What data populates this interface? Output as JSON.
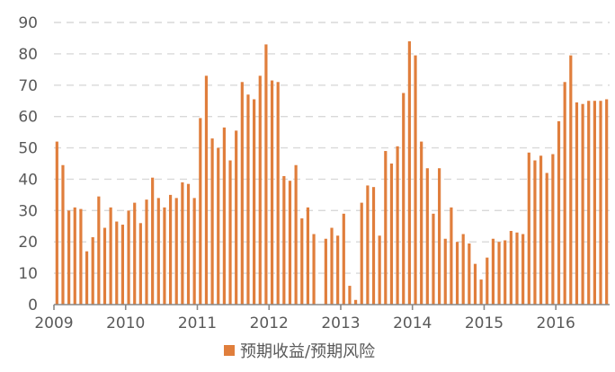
{
  "chart_data": {
    "type": "bar",
    "title": "",
    "xlabel": "",
    "ylabel": "",
    "ylim": [
      0,
      90
    ],
    "yticks": [
      0,
      10,
      20,
      30,
      40,
      50,
      60,
      70,
      80,
      90
    ],
    "xticks": [
      "2009",
      "2010",
      "2011",
      "2012",
      "2013",
      "2014",
      "2015",
      "2016"
    ],
    "grid": "horizontal dashed",
    "legend_position": "bottom-center",
    "series": [
      {
        "name": "预期收益/预期风险",
        "color": "#E07E3C",
        "x": [
          "2009-01",
          "2009-02",
          "2009-03",
          "2009-04",
          "2009-05",
          "2009-06",
          "2009-07",
          "2009-08",
          "2009-09",
          "2009-10",
          "2009-11",
          "2009-12",
          "2010-01",
          "2010-02",
          "2010-03",
          "2010-04",
          "2010-05",
          "2010-06",
          "2010-07",
          "2010-08",
          "2010-09",
          "2010-10",
          "2010-11",
          "2010-12",
          "2011-01",
          "2011-02",
          "2011-03",
          "2011-04",
          "2011-05",
          "2011-06",
          "2011-07",
          "2011-08",
          "2011-09",
          "2011-10",
          "2011-11",
          "2011-12",
          "2012-01",
          "2012-02",
          "2012-03",
          "2012-04",
          "2012-05",
          "2012-06",
          "2012-07",
          "2012-08",
          "2012-09",
          "2012-10",
          "2012-11",
          "2012-12",
          "2013-01",
          "2013-02",
          "2013-03",
          "2013-04",
          "2013-05",
          "2013-06",
          "2013-07",
          "2013-08",
          "2013-09",
          "2013-10",
          "2013-11",
          "2013-12",
          "2014-01",
          "2014-02",
          "2014-03",
          "2014-04",
          "2014-05",
          "2014-06",
          "2014-07",
          "2014-08",
          "2014-09",
          "2014-10",
          "2014-11",
          "2014-12",
          "2015-01",
          "2015-02",
          "2015-03",
          "2015-04",
          "2015-05",
          "2015-06",
          "2015-07",
          "2015-08",
          "2015-09",
          "2015-10",
          "2015-11",
          "2015-12",
          "2016-01",
          "2016-02",
          "2016-03",
          "2016-04",
          "2016-05",
          "2016-06",
          "2016-07",
          "2016-08",
          "2016-09"
        ],
        "values": [
          52,
          44.5,
          30,
          31,
          30.5,
          17,
          21.5,
          34.5,
          24.5,
          31,
          26.5,
          25.5,
          30,
          32.5,
          26,
          33.5,
          40.5,
          34,
          31,
          35,
          34,
          39,
          38.5,
          34,
          59.5,
          73,
          53,
          50,
          56.5,
          46,
          55.5,
          71,
          67,
          65.5,
          73,
          83,
          71.5,
          71,
          41,
          39.5,
          44.5,
          27.5,
          31,
          22.5,
          null,
          21,
          24.5,
          22,
          29,
          6,
          1.5,
          32.5,
          38,
          37.5,
          22,
          49,
          45,
          50.5,
          67.5,
          84,
          79.5,
          52,
          43.5,
          29,
          43.5,
          21,
          31,
          20,
          22.5,
          19.5,
          13,
          8,
          15,
          21,
          20,
          20.5,
          23.5,
          23,
          22.5,
          48.5,
          46,
          47.5,
          42,
          48,
          58.5,
          71,
          79.5,
          64.5,
          64,
          65,
          65,
          65,
          65.5
        ]
      }
    ]
  }
}
